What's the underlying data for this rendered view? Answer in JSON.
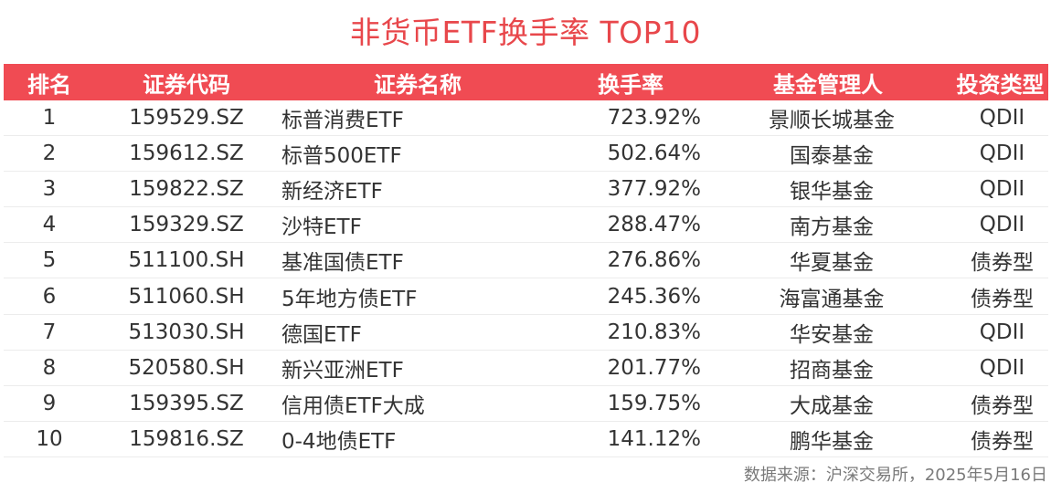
{
  "title": "非货币ETF换手率 TOP10",
  "table": {
    "columns": [
      "排名",
      "证券代码",
      "证券名称",
      "换手率",
      "基金管理人",
      "投资类型"
    ],
    "rows": [
      {
        "rank": "1",
        "code": "159529.SZ",
        "name": "标普消费ETF",
        "rate": "723.92%",
        "manager": "景顺长城基金",
        "type": "QDII"
      },
      {
        "rank": "2",
        "code": "159612.SZ",
        "name": "标普500ETF",
        "rate": "502.64%",
        "manager": "国泰基金",
        "type": "QDII"
      },
      {
        "rank": "3",
        "code": "159822.SZ",
        "name": "新经济ETF",
        "rate": "377.92%",
        "manager": "银华基金",
        "type": "QDII"
      },
      {
        "rank": "4",
        "code": "159329.SZ",
        "name": "沙特ETF",
        "rate": "288.47%",
        "manager": "南方基金",
        "type": "QDII"
      },
      {
        "rank": "5",
        "code": "511100.SH",
        "name": "基准国债ETF",
        "rate": "276.86%",
        "manager": "华夏基金",
        "type": "债券型"
      },
      {
        "rank": "6",
        "code": "511060.SH",
        "name": "5年地方债ETF",
        "rate": "245.36%",
        "manager": "海富通基金",
        "type": "债券型"
      },
      {
        "rank": "7",
        "code": "513030.SH",
        "name": "德国ETF",
        "rate": "210.83%",
        "manager": "华安基金",
        "type": "QDII"
      },
      {
        "rank": "8",
        "code": "520580.SH",
        "name": "新兴亚洲ETF",
        "rate": "201.77%",
        "manager": "招商基金",
        "type": "QDII"
      },
      {
        "rank": "9",
        "code": "159395.SZ",
        "name": "信用债ETF大成",
        "rate": "159.75%",
        "manager": "大成基金",
        "type": "债券型"
      },
      {
        "rank": "10",
        "code": "159816.SZ",
        "name": "0-4地债ETF",
        "rate": "141.12%",
        "manager": "鹏华基金",
        "type": "债券型"
      }
    ]
  },
  "source": "数据来源：沪深交易所，2025年5月16日",
  "colors": {
    "title": "#e8474b",
    "header_bg": "#f04b53",
    "header_text": "#ffffff",
    "body_text": "#333333",
    "source_text": "#7a7a7a"
  }
}
